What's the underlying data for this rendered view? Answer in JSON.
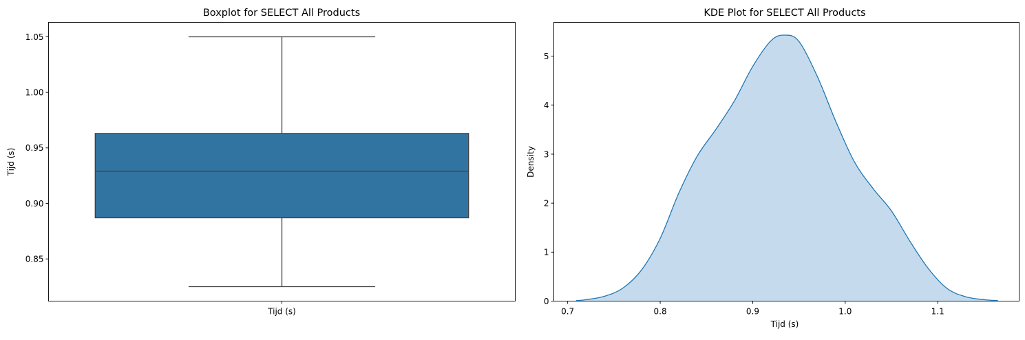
{
  "chart_data": [
    {
      "type": "box",
      "title": "Boxplot for SELECT All Products",
      "xlabel": "",
      "ylabel": "Tijd (s)",
      "categories": [
        "Tijd (s)"
      ],
      "box": {
        "min": 0.825,
        "q1": 0.887,
        "median": 0.929,
        "q3": 0.963,
        "max": 1.05
      },
      "ylim": [
        0.812,
        1.063
      ],
      "yticks": [
        0.85,
        0.9,
        0.95,
        1.0,
        1.05
      ],
      "ytick_labels": [
        "0.85",
        "0.90",
        "0.95",
        "1.00",
        "1.05"
      ],
      "color": "#3274a1",
      "grid": false
    },
    {
      "type": "area",
      "title": "KDE Plot for SELECT All Products",
      "xlabel": "Tijd (s)",
      "ylabel": "Density",
      "xlim": [
        0.685,
        1.188
      ],
      "ylim": [
        0,
        5.69
      ],
      "xticks": [
        0.7,
        0.8,
        0.9,
        1.0,
        1.1
      ],
      "xtick_labels": [
        "0.7",
        "0.8",
        "0.9",
        "1.0",
        "1.1"
      ],
      "yticks": [
        0,
        1,
        2,
        3,
        4,
        5
      ],
      "ytick_labels": [
        "0",
        "1",
        "2",
        "3",
        "4",
        "5"
      ],
      "x": [
        0.709,
        0.72,
        0.74,
        0.76,
        0.78,
        0.8,
        0.82,
        0.84,
        0.86,
        0.88,
        0.9,
        0.92,
        0.935,
        0.95,
        0.97,
        0.99,
        1.01,
        1.03,
        1.05,
        1.07,
        1.09,
        1.11,
        1.13,
        1.15,
        1.165
      ],
      "y": [
        0.01,
        0.03,
        0.1,
        0.27,
        0.64,
        1.28,
        2.2,
        2.96,
        3.5,
        4.08,
        4.79,
        5.32,
        5.43,
        5.3,
        4.58,
        3.66,
        2.84,
        2.3,
        1.84,
        1.22,
        0.66,
        0.26,
        0.09,
        0.03,
        0.01
      ],
      "color": "#1f77b4",
      "fill_color": "#c5dbed",
      "grid": false
    }
  ]
}
